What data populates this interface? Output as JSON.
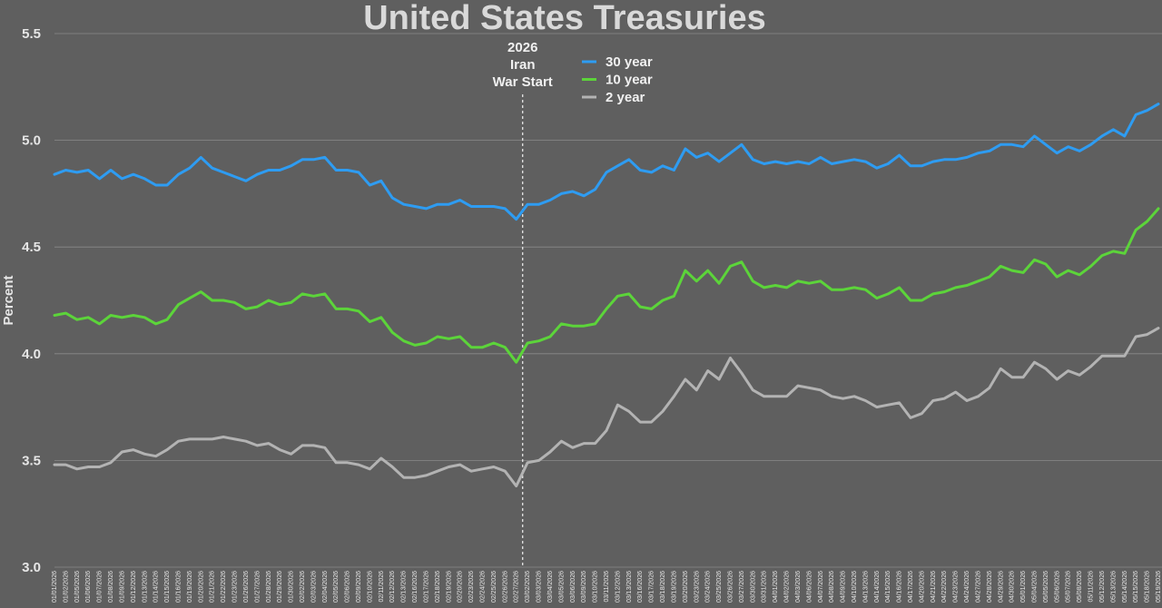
{
  "chart_data": {
    "type": "line",
    "title": "United States Treasuries",
    "ylabel": "Percent",
    "ylim": [
      3.0,
      5.5
    ],
    "yticks": [
      "3.0",
      "3.5",
      "4.0",
      "4.5",
      "5.0",
      "5.5"
    ],
    "grid": true,
    "legend_position": "top-center",
    "x": [
      "01/01/2026",
      "01/02/2026",
      "01/05/2026",
      "01/06/2026",
      "01/07/2026",
      "01/08/2026",
      "01/09/2026",
      "01/12/2026",
      "01/13/2026",
      "01/14/2026",
      "01/15/2026",
      "01/16/2026",
      "01/19/2026",
      "01/20/2026",
      "01/21/2026",
      "01/22/2026",
      "01/23/2026",
      "01/26/2026",
      "01/27/2026",
      "01/28/2026",
      "01/29/2026",
      "01/30/2026",
      "02/02/2026",
      "02/03/2026",
      "02/04/2026",
      "02/05/2026",
      "02/06/2026",
      "02/09/2026",
      "02/10/2026",
      "02/11/2026",
      "02/12/2026",
      "02/13/2026",
      "02/16/2026",
      "02/17/2026",
      "02/18/2026",
      "02/19/2026",
      "02/20/2026",
      "02/23/2026",
      "02/24/2026",
      "02/25/2026",
      "02/26/2026",
      "02/27/2026",
      "03/02/2026",
      "03/03/2026",
      "03/04/2026",
      "03/05/2026",
      "03/06/2026",
      "03/09/2026",
      "03/10/2026",
      "03/11/2026",
      "03/12/2026",
      "03/13/2026",
      "03/16/2026",
      "03/17/2026",
      "03/18/2026",
      "03/19/2026",
      "03/20/2026",
      "03/23/2026",
      "03/24/2026",
      "03/25/2026",
      "03/26/2026",
      "03/27/2026",
      "03/30/2026",
      "03/31/2026",
      "04/01/2026",
      "04/02/2026",
      "04/03/2026",
      "04/06/2026",
      "04/07/2026",
      "04/08/2026",
      "04/09/2026",
      "04/10/2026",
      "04/13/2026",
      "04/14/2026",
      "04/15/2026",
      "04/16/2026",
      "04/17/2026",
      "04/20/2026",
      "04/21/2026",
      "04/22/2026",
      "04/23/2026",
      "04/24/2026",
      "04/27/2026",
      "04/28/2026",
      "04/29/2026",
      "04/30/2026",
      "05/01/2026",
      "05/04/2026",
      "05/05/2026",
      "05/06/2026",
      "05/07/2026",
      "05/08/2026",
      "05/11/2026",
      "05/12/2026",
      "05/13/2026",
      "05/14/2026",
      "05/15/2026",
      "05/18/2026",
      "05/19/2026"
    ],
    "series": [
      {
        "name": "30 year",
        "color": "#2e9cf2",
        "values": [
          4.84,
          4.86,
          4.85,
          4.86,
          4.82,
          4.86,
          4.82,
          4.84,
          4.82,
          4.79,
          4.79,
          4.84,
          4.87,
          4.92,
          4.87,
          4.85,
          4.83,
          4.81,
          4.84,
          4.86,
          4.86,
          4.88,
          4.91,
          4.91,
          4.92,
          4.86,
          4.86,
          4.85,
          4.79,
          4.81,
          4.73,
          4.7,
          4.69,
          4.68,
          4.7,
          4.7,
          4.72,
          4.69,
          4.69,
          4.69,
          4.68,
          4.63,
          4.7,
          4.7,
          4.72,
          4.75,
          4.76,
          4.74,
          4.77,
          4.85,
          4.88,
          4.91,
          4.86,
          4.85,
          4.88,
          4.86,
          4.96,
          4.92,
          4.94,
          4.9,
          4.94,
          4.98,
          4.91,
          4.89,
          4.9,
          4.89,
          4.9,
          4.89,
          4.92,
          4.89,
          4.9,
          4.91,
          4.9,
          4.87,
          4.89,
          4.93,
          4.88,
          4.88,
          4.9,
          4.91,
          4.91,
          4.92,
          4.94,
          4.95,
          4.98,
          4.98,
          4.97,
          5.02,
          4.98,
          4.94,
          4.97,
          4.95,
          4.98,
          5.02,
          5.05,
          5.02,
          5.12,
          5.14,
          5.17
        ]
      },
      {
        "name": "10 year",
        "color": "#5cd43a",
        "values": [
          4.18,
          4.19,
          4.16,
          4.17,
          4.14,
          4.18,
          4.17,
          4.18,
          4.17,
          4.14,
          4.16,
          4.23,
          4.26,
          4.29,
          4.25,
          4.25,
          4.24,
          4.21,
          4.22,
          4.25,
          4.23,
          4.24,
          4.28,
          4.27,
          4.28,
          4.21,
          4.21,
          4.2,
          4.15,
          4.17,
          4.1,
          4.06,
          4.04,
          4.05,
          4.08,
          4.07,
          4.08,
          4.03,
          4.03,
          4.05,
          4.03,
          3.96,
          4.05,
          4.06,
          4.08,
          4.14,
          4.13,
          4.13,
          4.14,
          4.21,
          4.27,
          4.28,
          4.22,
          4.21,
          4.25,
          4.27,
          4.39,
          4.34,
          4.39,
          4.33,
          4.41,
          4.43,
          4.34,
          4.31,
          4.32,
          4.31,
          4.34,
          4.33,
          4.34,
          4.3,
          4.3,
          4.31,
          4.3,
          4.26,
          4.28,
          4.31,
          4.25,
          4.25,
          4.28,
          4.29,
          4.31,
          4.32,
          4.34,
          4.36,
          4.41,
          4.39,
          4.38,
          4.44,
          4.42,
          4.36,
          4.39,
          4.37,
          4.41,
          4.46,
          4.48,
          4.47,
          4.58,
          4.62,
          4.68
        ]
      },
      {
        "name": "2 year",
        "color": "#b3b3b3",
        "values": [
          3.48,
          3.48,
          3.46,
          3.47,
          3.47,
          3.49,
          3.54,
          3.55,
          3.53,
          3.52,
          3.55,
          3.59,
          3.6,
          3.6,
          3.6,
          3.61,
          3.6,
          3.59,
          3.57,
          3.58,
          3.55,
          3.53,
          3.57,
          3.57,
          3.56,
          3.49,
          3.49,
          3.48,
          3.46,
          3.51,
          3.47,
          3.42,
          3.42,
          3.43,
          3.45,
          3.47,
          3.48,
          3.45,
          3.46,
          3.47,
          3.45,
          3.38,
          3.49,
          3.5,
          3.54,
          3.59,
          3.56,
          3.58,
          3.58,
          3.64,
          3.76,
          3.73,
          3.68,
          3.68,
          3.73,
          3.8,
          3.88,
          3.83,
          3.92,
          3.88,
          3.98,
          3.91,
          3.83,
          3.8,
          3.8,
          3.8,
          3.85,
          3.84,
          3.83,
          3.8,
          3.79,
          3.8,
          3.78,
          3.75,
          3.76,
          3.77,
          3.7,
          3.72,
          3.78,
          3.79,
          3.82,
          3.78,
          3.8,
          3.84,
          3.93,
          3.89,
          3.89,
          3.96,
          3.93,
          3.88,
          3.92,
          3.9,
          3.94,
          3.99,
          3.99,
          3.99,
          4.08,
          4.09,
          4.12
        ]
      }
    ],
    "annotation": {
      "lines": [
        "2026",
        "Iran",
        "War Start"
      ],
      "at_x": "02/27/2026"
    }
  }
}
